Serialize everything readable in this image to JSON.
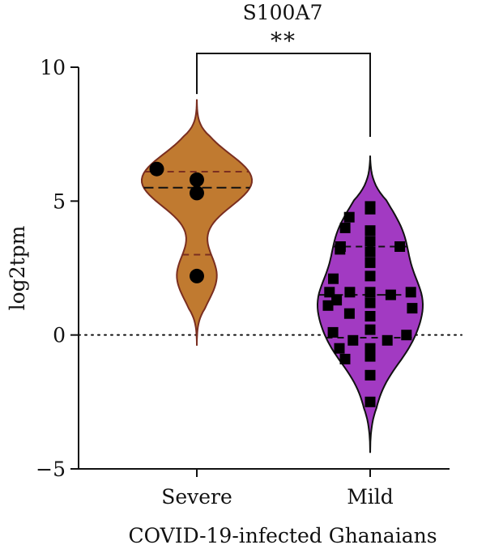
{
  "chart_data": {
    "type": "violin",
    "title": "S100A7",
    "xlabel": "COVID-19-infected Ghanaians",
    "ylabel": "log2tpm",
    "ylim": [
      -5,
      10
    ],
    "yticks": [
      -5,
      0,
      5,
      10
    ],
    "ytick_labels": [
      "−5",
      "0",
      "5",
      "10"
    ],
    "reference_line_y": 0,
    "grid": false,
    "categories": [
      "Severe",
      "Mild"
    ],
    "significance": {
      "groups": [
        "Severe",
        "Mild"
      ],
      "label": "**"
    },
    "colors": {
      "Severe": "#C07A30",
      "Mild": "#A23AC2",
      "outline": "#7A2E20",
      "outline_mild": "#111111"
    },
    "series": [
      {
        "category": "Severe",
        "marker": "circle",
        "points": [
          5.8,
          6.2,
          5.3,
          2.2
        ],
        "median": 5.5,
        "quartiles": [
          3.0,
          6.1
        ],
        "range": [
          -0.4,
          8.8
        ]
      },
      {
        "category": "Mild",
        "marker": "square",
        "points": [
          4.8,
          4.7,
          4.4,
          3.9,
          4.0,
          3.5,
          3.3,
          3.3,
          3.1,
          3.2,
          2.7,
          2.2,
          2.1,
          1.6,
          1.6,
          1.6,
          1.6,
          1.5,
          1.2,
          1.1,
          1.0,
          1.3,
          0.8,
          0.7,
          0.2,
          0.1,
          0.0,
          -0.2,
          -0.2,
          -0.5,
          -0.5,
          -0.8,
          -0.9,
          -1.5,
          -2.5
        ],
        "median": 1.5,
        "quartiles": [
          -0.1,
          3.3
        ],
        "range": [
          -4.4,
          6.7
        ]
      }
    ]
  }
}
